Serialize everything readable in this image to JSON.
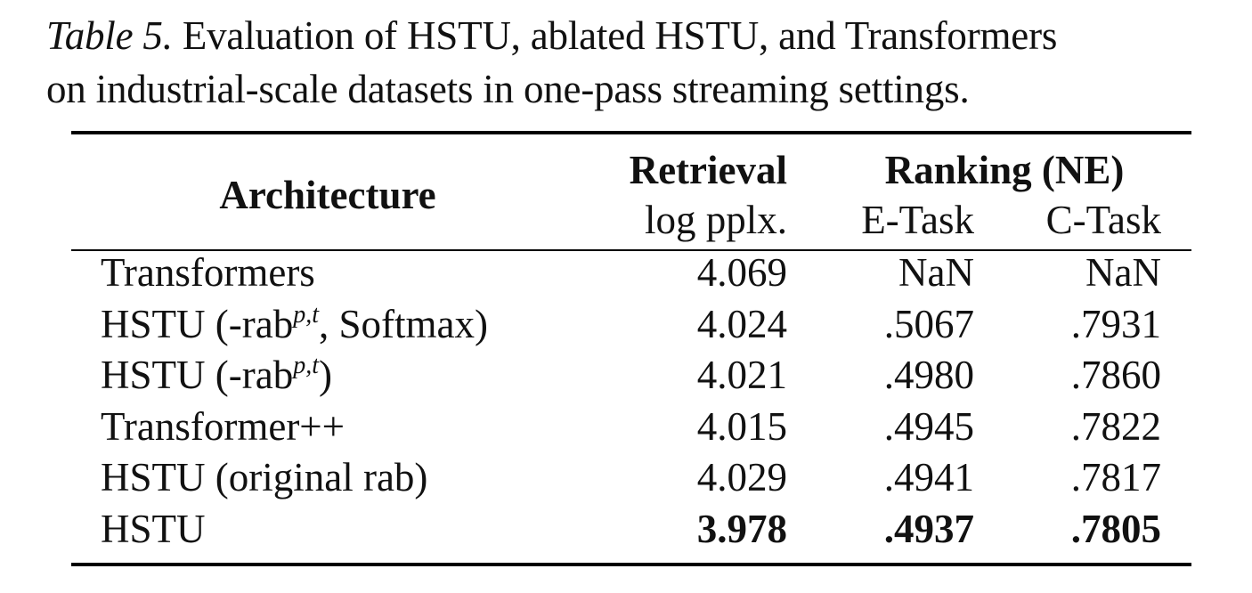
{
  "caption": {
    "label": "Table 5.",
    "line1": " Evaluation of HSTU, ablated HSTU, and Transformers",
    "line2": "on industrial-scale datasets in one-pass streaming settings."
  },
  "table": {
    "headers": {
      "architecture": "Architecture",
      "retrieval": "Retrieval",
      "retrieval_metric": "log pplx.",
      "ranking": "Ranking (NE)",
      "e_task": "E-Task",
      "c_task": "C-Task"
    },
    "rows": [
      {
        "arch": "Transformers",
        "arch_sup": "",
        "arch_suffix": "",
        "retrieval": "4.069",
        "e_task": "NaN",
        "c_task": "NaN",
        "bold": false
      },
      {
        "arch": "HSTU (-rab",
        "arch_sup": "p,t",
        "arch_suffix": ", Softmax)",
        "retrieval": "4.024",
        "e_task": ".5067",
        "c_task": ".7931",
        "bold": false
      },
      {
        "arch": "HSTU (-rab",
        "arch_sup": "p,t",
        "arch_suffix": ")",
        "retrieval": "4.021",
        "e_task": ".4980",
        "c_task": ".7860",
        "bold": false
      },
      {
        "arch": "Transformer++",
        "arch_sup": "",
        "arch_suffix": "",
        "retrieval": "4.015",
        "e_task": ".4945",
        "c_task": ".7822",
        "bold": false
      },
      {
        "arch": "HSTU (original rab)",
        "arch_sup": "",
        "arch_suffix": "",
        "retrieval": "4.029",
        "e_task": ".4941",
        "c_task": ".7817",
        "bold": false
      },
      {
        "arch": "HSTU",
        "arch_sup": "",
        "arch_suffix": "",
        "retrieval": "3.978",
        "e_task": ".4937",
        "c_task": ".7805",
        "bold": true
      }
    ]
  }
}
